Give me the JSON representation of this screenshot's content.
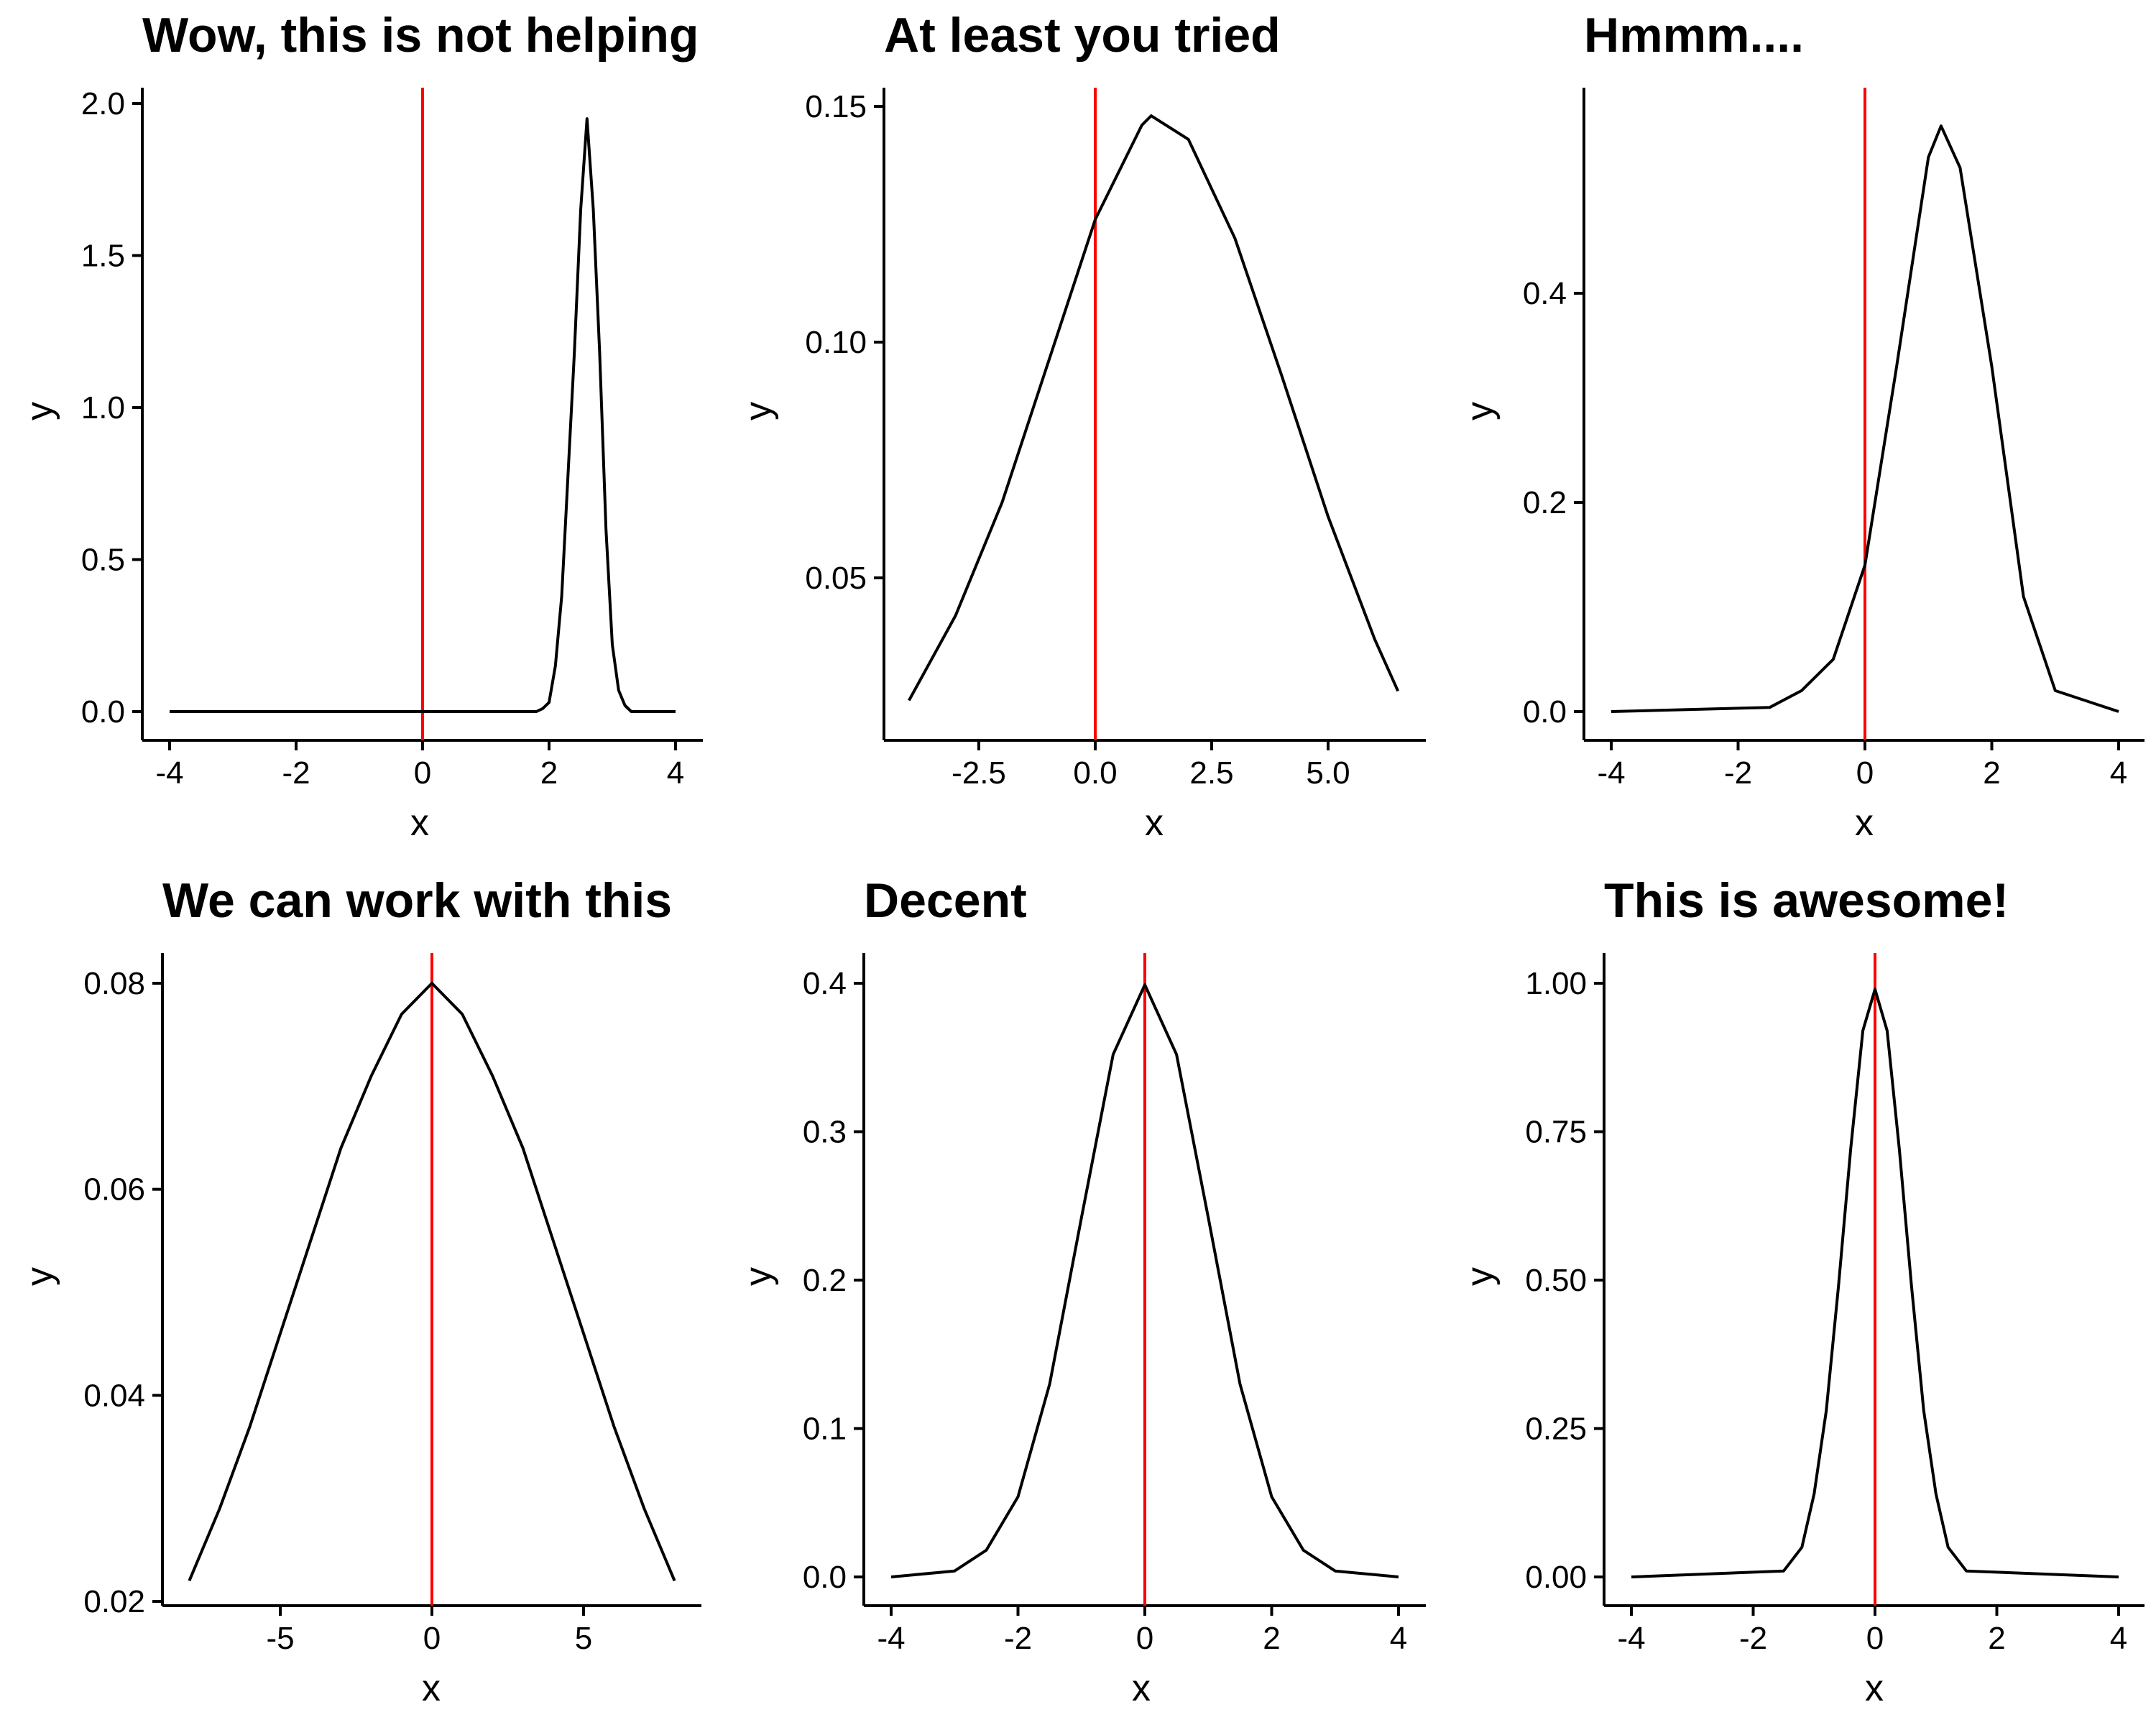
{
  "panels": [
    {
      "title": "Wow, this is not helping",
      "xlabel": "x",
      "ylabel": "y",
      "vline_x": 0,
      "vline_color": "#ff0000",
      "x_ticks": [
        "-4",
        "-2",
        "0",
        "2",
        "4"
      ],
      "y_ticks": [
        "0.0",
        "0.5",
        "1.0",
        "1.5",
        "2.0"
      ]
    },
    {
      "title": "At least you tried",
      "xlabel": "x",
      "ylabel": "y",
      "vline_x": 0,
      "vline_color": "#ff0000",
      "x_ticks": [
        "-2.5",
        "0.0",
        "2.5",
        "5.0"
      ],
      "y_ticks": [
        "0.05",
        "0.10",
        "0.15"
      ]
    },
    {
      "title": "Hmmm....",
      "xlabel": "x",
      "ylabel": "y",
      "vline_x": 0,
      "vline_color": "#ff0000",
      "x_ticks": [
        "-4",
        "-2",
        "0",
        "2",
        "4"
      ],
      "y_ticks": [
        "0.0",
        "0.2",
        "0.4"
      ]
    },
    {
      "title": "We can work with this",
      "xlabel": "x",
      "ylabel": "y",
      "vline_x": 0,
      "vline_color": "#ff0000",
      "x_ticks": [
        "-5",
        "0",
        "5"
      ],
      "y_ticks": [
        "0.02",
        "0.04",
        "0.06",
        "0.08"
      ]
    },
    {
      "title": "Decent",
      "xlabel": "x",
      "ylabel": "y",
      "vline_x": 0,
      "vline_color": "#ff0000",
      "x_ticks": [
        "-4",
        "-2",
        "0",
        "2",
        "4"
      ],
      "y_ticks": [
        "0.0",
        "0.1",
        "0.2",
        "0.3",
        "0.4"
      ]
    },
    {
      "title": "This is awesome!",
      "xlabel": "x",
      "ylabel": "y",
      "vline_x": 0,
      "vline_color": "#ff0000",
      "x_ticks": [
        "-4",
        "-2",
        "0",
        "2",
        "4"
      ],
      "y_ticks": [
        "0.00",
        "0.25",
        "0.50",
        "0.75",
        "1.00"
      ]
    }
  ],
  "chart_data": [
    {
      "type": "line",
      "title": "Wow, this is not helping",
      "xlabel": "x",
      "ylabel": "y",
      "xlim": [
        -4,
        4
      ],
      "ylim": [
        0,
        2
      ],
      "grid": false,
      "series": [
        {
          "x": [
            -4,
            1.8,
            1.9,
            2.0,
            2.1,
            2.2,
            2.3,
            2.4,
            2.5,
            2.6,
            2.7,
            2.8,
            2.9,
            3.0,
            3.1,
            3.2,
            3.3,
            4
          ],
          "y": [
            0,
            0,
            0.01,
            0.03,
            0.15,
            0.38,
            0.78,
            1.18,
            1.65,
            1.95,
            1.65,
            1.18,
            0.6,
            0.22,
            0.07,
            0.02,
            0,
            0
          ],
          "color": "#000000"
        }
      ],
      "vline": 0
    },
    {
      "type": "line",
      "title": "At least you tried",
      "xlabel": "x",
      "ylabel": "y",
      "xlim": [
        -4,
        6.5
      ],
      "ylim": [
        0.02,
        0.15
      ],
      "grid": false,
      "series": [
        {
          "x": [
            -4,
            -3,
            -2,
            -1,
            0,
            1,
            1.2,
            2,
            3,
            4,
            5,
            6,
            6.5
          ],
          "y": [
            0.024,
            0.042,
            0.066,
            0.096,
            0.126,
            0.146,
            0.148,
            0.143,
            0.122,
            0.093,
            0.063,
            0.037,
            0.026
          ],
          "color": "#000000"
        }
      ],
      "vline": 0
    },
    {
      "type": "line",
      "title": "Hmmm....",
      "xlabel": "x",
      "ylabel": "y",
      "xlim": [
        -4,
        4
      ],
      "ylim": [
        0,
        0.56
      ],
      "grid": false,
      "series": [
        {
          "x": [
            -4,
            -1.5,
            -1,
            -0.5,
            0,
            0.5,
            1,
            1.2,
            1.5,
            2,
            2.5,
            3,
            4
          ],
          "y": [
            0,
            0.004,
            0.02,
            0.05,
            0.14,
            0.33,
            0.53,
            0.56,
            0.52,
            0.33,
            0.11,
            0.02,
            0
          ],
          "color": "#000000"
        }
      ],
      "vline": 0
    },
    {
      "type": "line",
      "title": "We can work with this",
      "xlabel": "x",
      "ylabel": "y",
      "xlim": [
        -8,
        8
      ],
      "ylim": [
        0.02,
        0.08
      ],
      "grid": false,
      "series": [
        {
          "x": [
            -8,
            -7,
            -6,
            -5,
            -4,
            -3,
            -2,
            -1,
            0,
            1,
            2,
            3,
            4,
            5,
            6,
            7,
            8
          ],
          "y": [
            0.022,
            0.029,
            0.037,
            0.046,
            0.055,
            0.064,
            0.071,
            0.077,
            0.08,
            0.077,
            0.071,
            0.064,
            0.055,
            0.046,
            0.037,
            0.029,
            0.022
          ],
          "color": "#000000"
        }
      ],
      "vline": 0
    },
    {
      "type": "line",
      "title": "Decent",
      "xlabel": "x",
      "ylabel": "y",
      "xlim": [
        -4,
        4
      ],
      "ylim": [
        0,
        0.4
      ],
      "grid": false,
      "series": [
        {
          "x": [
            -4,
            -3,
            -2.5,
            -2,
            -1.5,
            -1,
            -0.5,
            0,
            0.5,
            1,
            1.5,
            2,
            2.5,
            3,
            4
          ],
          "y": [
            0,
            0.004,
            0.018,
            0.054,
            0.13,
            0.242,
            0.352,
            0.399,
            0.352,
            0.242,
            0.13,
            0.054,
            0.018,
            0.004,
            0
          ],
          "color": "#000000"
        }
      ],
      "vline": 0
    },
    {
      "type": "line",
      "title": "This is awesome!",
      "xlabel": "x",
      "ylabel": "y",
      "xlim": [
        -4,
        4
      ],
      "ylim": [
        0,
        1
      ],
      "grid": false,
      "series": [
        {
          "x": [
            -4,
            -1.5,
            -1.2,
            -1,
            -0.8,
            -0.6,
            -0.4,
            -0.2,
            0,
            0.2,
            0.4,
            0.6,
            0.8,
            1,
            1.2,
            1.5,
            4
          ],
          "y": [
            0,
            0.01,
            0.05,
            0.14,
            0.28,
            0.49,
            0.72,
            0.92,
            0.99,
            0.92,
            0.72,
            0.49,
            0.28,
            0.14,
            0.05,
            0.01,
            0
          ],
          "color": "#000000"
        }
      ],
      "vline": 0
    }
  ]
}
